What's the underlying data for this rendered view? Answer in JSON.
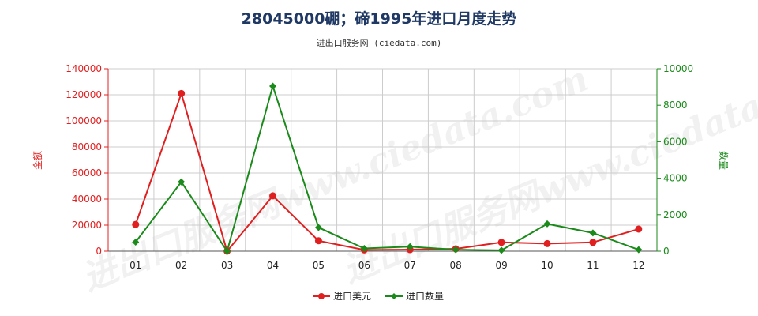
{
  "chart_data": {
    "type": "line",
    "title": "28045000硼；碲1995年进口月度走势",
    "subtitle": "进出口服务网 (ciedata.com)",
    "watermark": "进出口服务网www.ciedata.com",
    "categories": [
      "01",
      "02",
      "03",
      "04",
      "05",
      "06",
      "07",
      "08",
      "09",
      "10",
      "11",
      "12"
    ],
    "y_left": {
      "label": "金额",
      "min": 0,
      "max": 140000,
      "ticks": [
        0,
        20000,
        40000,
        60000,
        80000,
        100000,
        120000,
        140000
      ]
    },
    "y_right": {
      "label": "数量",
      "min": 0,
      "max": 10000,
      "ticks": [
        0,
        2000,
        4000,
        6000,
        8000,
        10000
      ]
    },
    "grid": true,
    "legend_position": "bottom-center",
    "series": [
      {
        "name": "进口美元",
        "axis": "left",
        "color": "#e02020",
        "marker": "circle",
        "values": [
          20500,
          121000,
          0,
          42500,
          8000,
          1000,
          1200,
          1800,
          6800,
          5800,
          6800,
          17000
        ]
      },
      {
        "name": "进口数量",
        "axis": "right",
        "color": "#1a8a1a",
        "marker": "diamond",
        "values": [
          500,
          3800,
          0,
          9050,
          1300,
          150,
          250,
          80,
          50,
          1500,
          1000,
          80
        ]
      }
    ]
  }
}
